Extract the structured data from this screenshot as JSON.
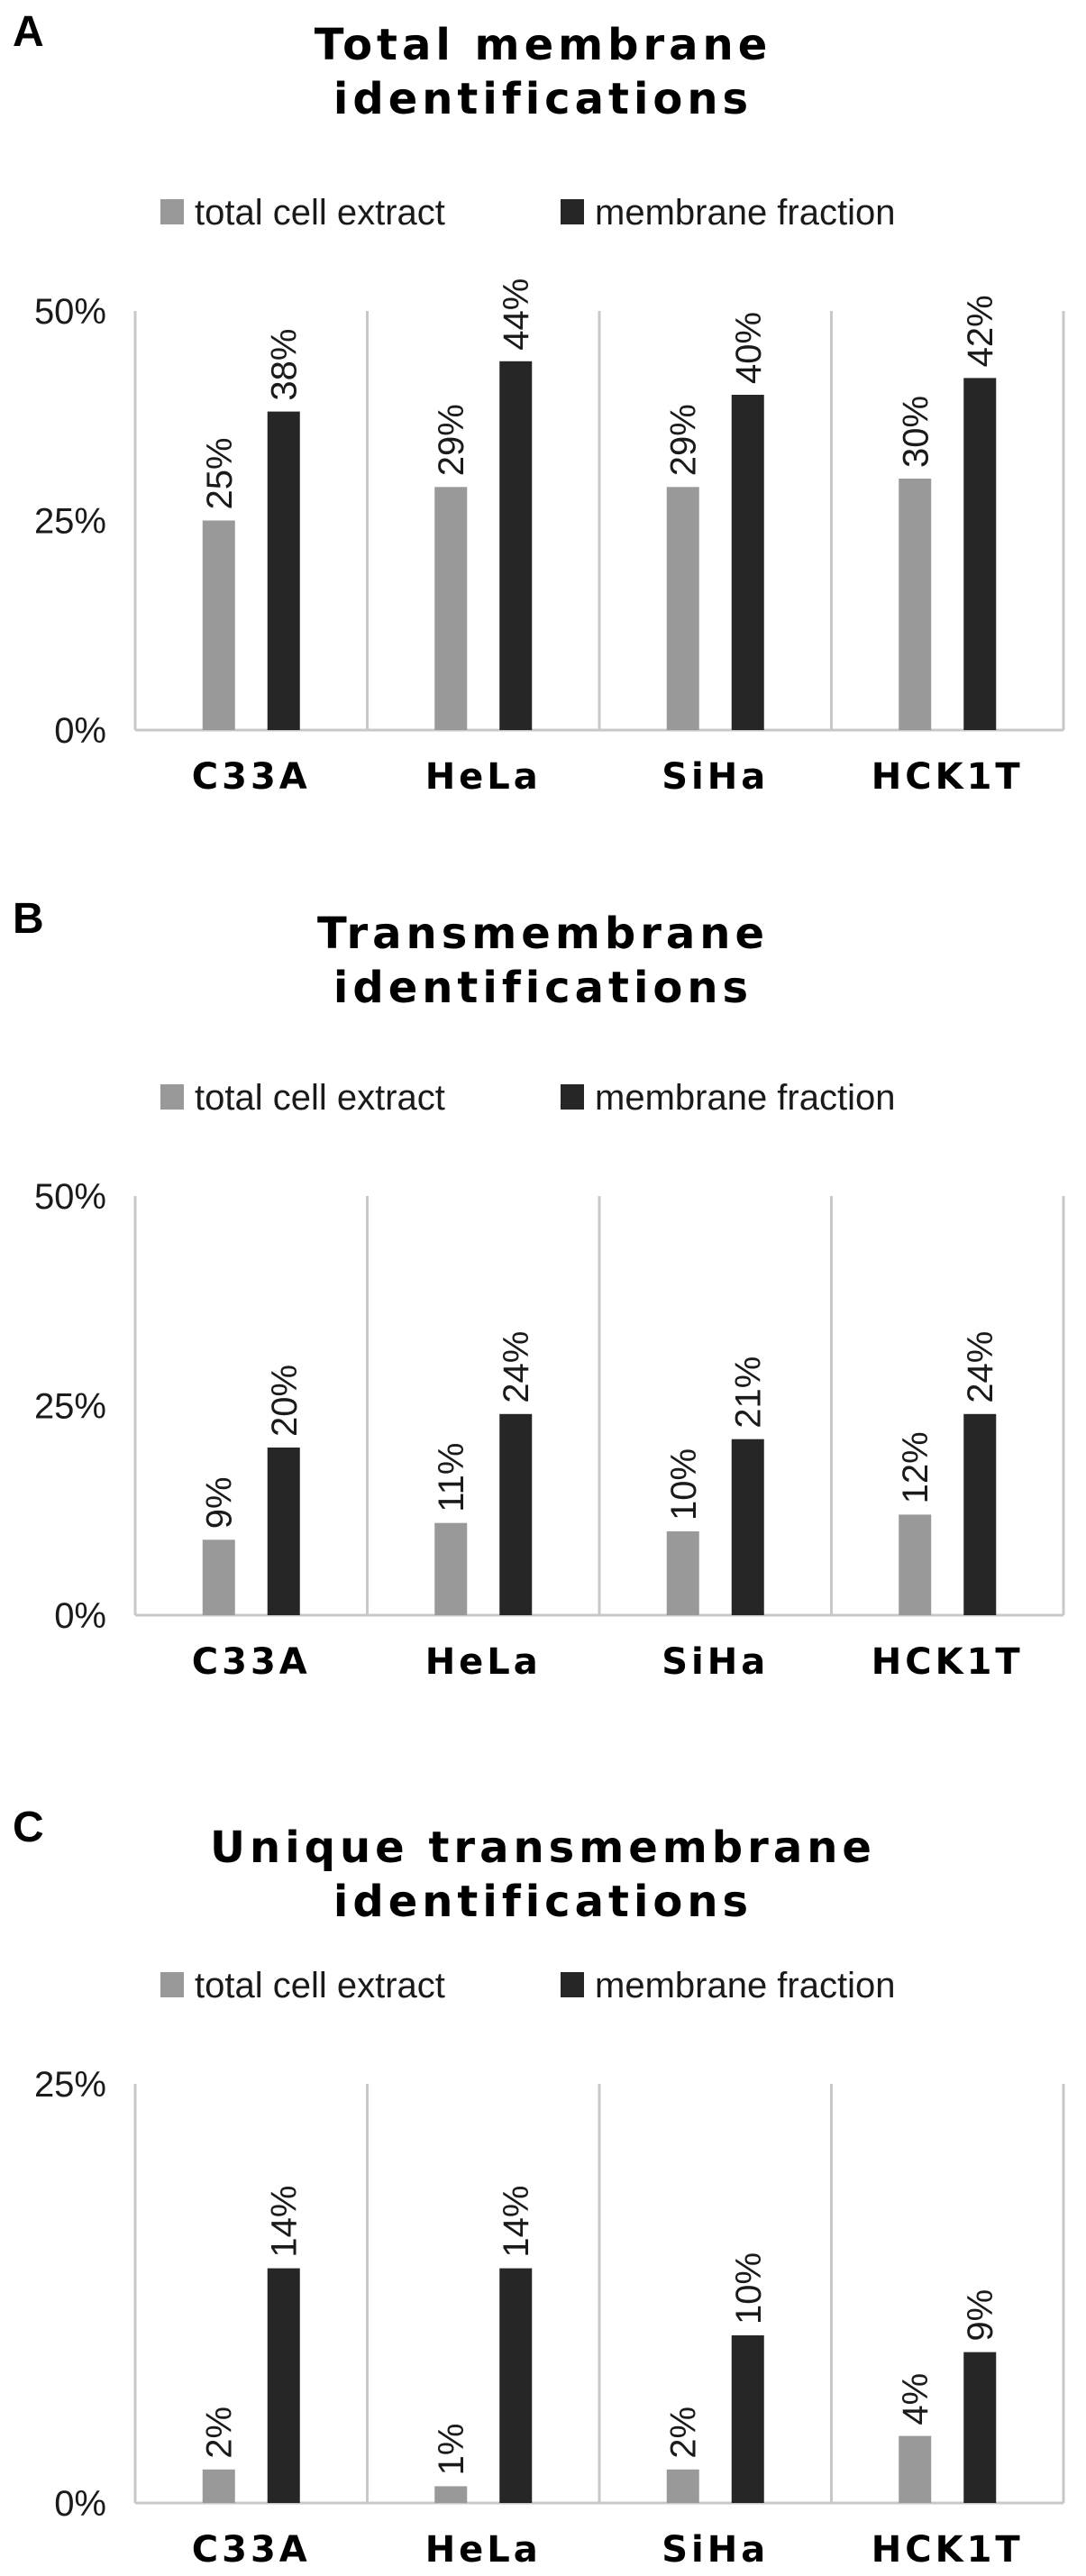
{
  "chart_data": [
    {
      "type": "bar",
      "panel": "A",
      "title": [
        "Total membrane",
        "identifications"
      ],
      "categories": [
        "C33A",
        "HeLa",
        "SiHa",
        "HCK1T"
      ],
      "series": [
        {
          "name": "total cell extract",
          "values": [
            25,
            29,
            29,
            30
          ],
          "labels": [
            "25%",
            "29%",
            "29%",
            "30%"
          ],
          "color": "#999999"
        },
        {
          "name": "membrane fraction",
          "values": [
            38,
            44,
            40,
            42
          ],
          "labels": [
            "38%",
            "44%",
            "40%",
            "42%"
          ],
          "color": "#262626"
        }
      ],
      "yticks": [
        0,
        25,
        50
      ],
      "ytick_labels": [
        "0%",
        "25%",
        "50%"
      ],
      "ylim": [
        0,
        50
      ],
      "legend": "top",
      "grid": false
    },
    {
      "type": "bar",
      "panel": "B",
      "title": [
        "Transmembrane",
        "identifications"
      ],
      "categories": [
        "C33A",
        "HeLa",
        "SiHa",
        "HCK1T"
      ],
      "series": [
        {
          "name": "total cell extract",
          "values": [
            9,
            11,
            10,
            12
          ],
          "labels": [
            "9%",
            "11%",
            "10%",
            "12%"
          ],
          "color": "#999999"
        },
        {
          "name": "membrane fraction",
          "values": [
            20,
            24,
            21,
            24
          ],
          "labels": [
            "20%",
            "24%",
            "21%",
            "24%"
          ],
          "color": "#262626"
        }
      ],
      "yticks": [
        0,
        25,
        50
      ],
      "ytick_labels": [
        "0%",
        "25%",
        "50%"
      ],
      "ylim": [
        0,
        50
      ],
      "legend": "top",
      "grid": false
    },
    {
      "type": "bar",
      "panel": "C",
      "title": [
        "Unique transmembrane",
        "identifications"
      ],
      "categories": [
        "C33A",
        "HeLa",
        "SiHa",
        "HCK1T"
      ],
      "series": [
        {
          "name": "total cell extract",
          "values": [
            2,
            1,
            2,
            4
          ],
          "labels": [
            "2%",
            "1%",
            "2%",
            "4%"
          ],
          "color": "#999999"
        },
        {
          "name": "membrane fraction",
          "values": [
            14,
            14,
            10,
            9
          ],
          "labels": [
            "14%",
            "14%",
            "10%",
            "9%"
          ],
          "color": "#262626"
        }
      ],
      "yticks": [
        0,
        25
      ],
      "ytick_labels": [
        "0%",
        "25%"
      ],
      "ylim": [
        0,
        25
      ],
      "legend": "top",
      "grid": false
    }
  ]
}
